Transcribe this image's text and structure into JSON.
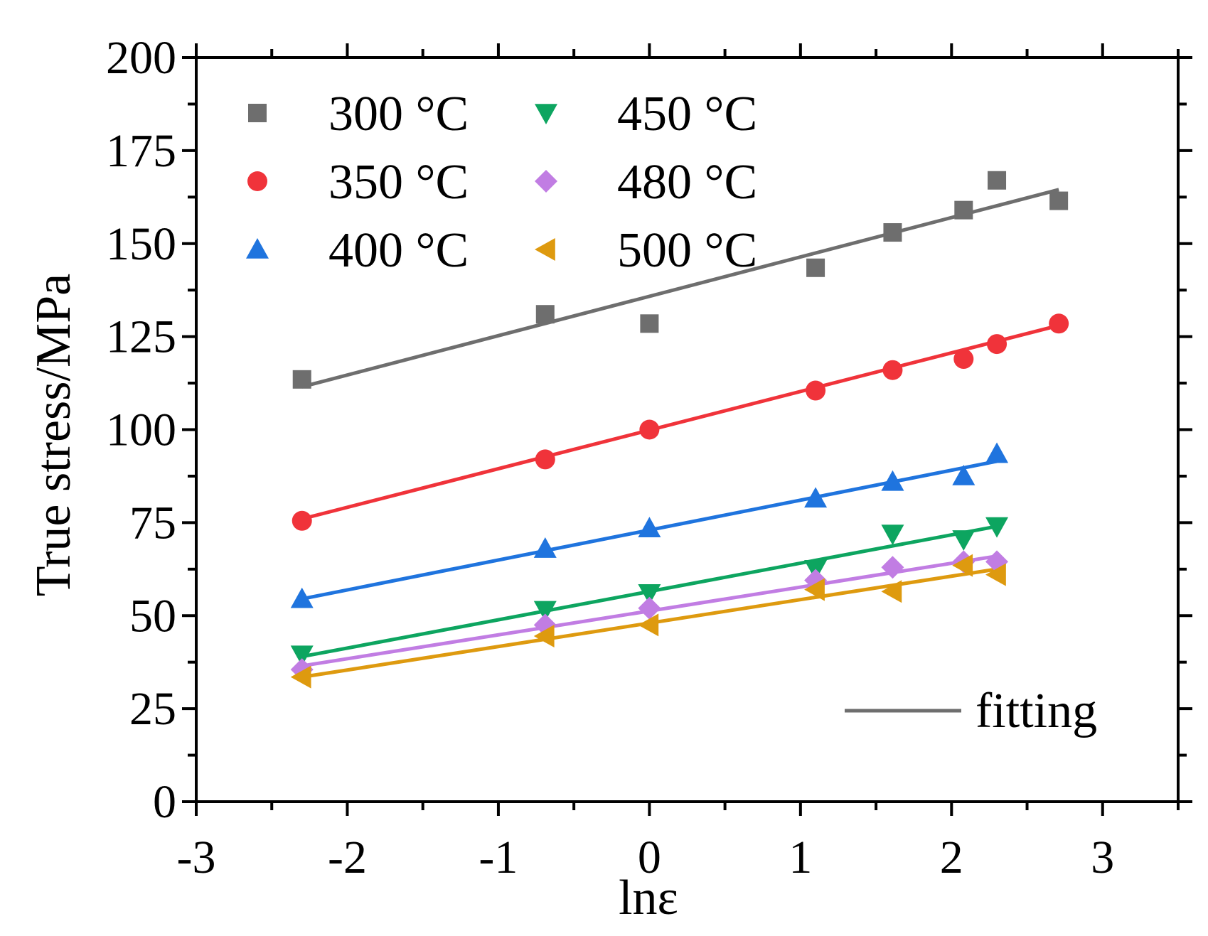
{
  "chart_data": {
    "type": "scatter",
    "title": "",
    "xlabel": "lnε",
    "ylabel": "True stress/MPa",
    "xlim": [
      -3,
      3.5
    ],
    "ylim": [
      0,
      200
    ],
    "xticks": [
      -3,
      -2,
      -1,
      0,
      1,
      2,
      3
    ],
    "xtick_labels": [
      "-3",
      "-2",
      "-1",
      "0",
      "1",
      "2",
      "3"
    ],
    "yticks": [
      0,
      25,
      50,
      75,
      100,
      125,
      150,
      175,
      200
    ],
    "ytick_labels": [
      "0",
      "25",
      "50",
      "75",
      "100",
      "125",
      "150",
      "175",
      "200"
    ],
    "grid": false,
    "legend_position": "top-left",
    "fit_legend_label": "fitting",
    "fit_legend_color": "#6e6e6e",
    "series": [
      {
        "name": "300 °C",
        "marker": "square",
        "color": "#6e6e6e",
        "x": [
          -2.3,
          -0.69,
          0,
          1.1,
          1.61,
          2.08,
          2.3,
          2.71
        ],
        "y": [
          113.5,
          131,
          128.5,
          143.5,
          153,
          159,
          167,
          161.5
        ],
        "fit": [
          [
            -2.3,
            111.5
          ],
          [
            2.71,
            164.5
          ]
        ]
      },
      {
        "name": "350 °C",
        "marker": "circle",
        "color": "#f0333a",
        "x": [
          -2.3,
          -0.69,
          0,
          1.1,
          1.61,
          2.08,
          2.3,
          2.71
        ],
        "y": [
          75.5,
          92,
          100,
          110.5,
          116,
          119,
          123,
          128.5
        ],
        "fit": [
          [
            -2.3,
            76
          ],
          [
            2.71,
            128
          ]
        ]
      },
      {
        "name": "400 °C",
        "marker": "triangle-up",
        "color": "#1f74de",
        "x": [
          -2.3,
          -0.69,
          0,
          1.1,
          1.61,
          2.08,
          2.3
        ],
        "y": [
          54.5,
          68,
          73.5,
          81.5,
          86,
          87.5,
          93.5
        ],
        "fit": [
          [
            -2.3,
            54.5
          ],
          [
            2.3,
            91.5
          ]
        ]
      },
      {
        "name": "450 °C",
        "marker": "triangle-down",
        "color": "#0da560",
        "x": [
          -2.3,
          -0.69,
          0,
          1.1,
          1.61,
          2.08,
          2.3
        ],
        "y": [
          39.5,
          51.5,
          56,
          62.5,
          72,
          70.5,
          74
        ],
        "fit": [
          [
            -2.3,
            39
          ],
          [
            2.3,
            74
          ]
        ]
      },
      {
        "name": "480 °C",
        "marker": "diamond",
        "color": "#c17de3",
        "x": [
          -2.3,
          -0.69,
          0,
          1.1,
          1.61,
          2.08,
          2.3
        ],
        "y": [
          35.5,
          47.5,
          52,
          59.5,
          63,
          64.5,
          64.5
        ],
        "fit": [
          [
            -2.3,
            36.5
          ],
          [
            2.3,
            66
          ]
        ]
      },
      {
        "name": "500 °C",
        "marker": "triangle-left",
        "color": "#de9a0f",
        "x": [
          -2.3,
          -0.69,
          0,
          1.1,
          1.61,
          2.08,
          2.3
        ],
        "y": [
          33.5,
          44.5,
          47.5,
          57,
          56.5,
          63.5,
          61
        ],
        "fit": [
          [
            -2.3,
            33.5
          ],
          [
            2.3,
            62.5
          ]
        ]
      }
    ]
  }
}
